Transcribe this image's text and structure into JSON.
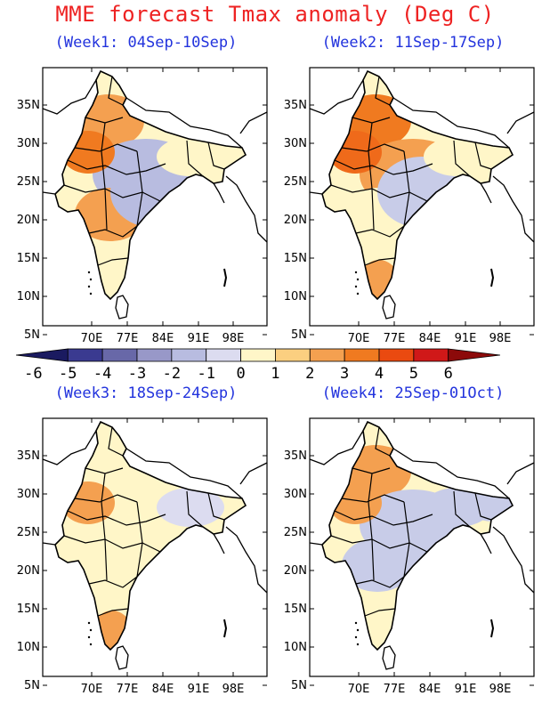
{
  "title": "MME forecast Tmax anomaly (Deg C)",
  "panels": [
    {
      "label": "(Week1: 04Sep-10Sep)",
      "fills": [
        "#f4a050",
        "#b8bce0",
        "#fff6c8",
        "#f07a20",
        "#fff6c8",
        "#f4a050",
        "#b8bce0",
        "#fff6c8",
        "#fff6c8"
      ]
    },
    {
      "label": "(Week2: 11Sep-17Sep)",
      "fills": [
        "#f07a20",
        "#f4a050",
        "#fff6c8",
        "#ef6a1a",
        "#fff6c8",
        "#fff6c8",
        "#c8cce8",
        "#f4a050",
        "#fff6c8"
      ]
    },
    {
      "label": "(Week3: 18Sep-24Sep)",
      "fills": [
        "#fff6c8",
        "#fff6c8",
        "#fff6c8",
        "#f4a050",
        "#fff6c8",
        "#fff6c8",
        "#fff6c8",
        "#f4a050",
        "#dcdcf0"
      ]
    },
    {
      "label": "(Week4: 25Sep-01Oct)",
      "fills": [
        "#f4a050",
        "#c8cce8",
        "#fff6c8",
        "#f4a050",
        "#c8cce8",
        "#c8cce8",
        "#c8cce8",
        "#fff6c8",
        "#c8cce8"
      ]
    }
  ],
  "lat_labels": [
    "35N",
    "30N",
    "25N",
    "20N",
    "15N",
    "10N",
    "5N"
  ],
  "lon_labels": [
    "70E",
    "77E",
    "84E",
    "91E",
    "98E"
  ],
  "colorbar": {
    "labels": [
      "-6",
      "-5",
      "-4",
      "-3",
      "-2",
      "-1",
      "0",
      "1",
      "2",
      "3",
      "4",
      "5",
      "6"
    ],
    "colors": [
      "#1a1a60",
      "#3a3a90",
      "#6868a8",
      "#9898c8",
      "#b8bce0",
      "#dcdcf0",
      "#fff6c8",
      "#fbcf80",
      "#f4a050",
      "#f07a20",
      "#ea4a10",
      "#d01818",
      "#8c0a0a"
    ]
  }
}
